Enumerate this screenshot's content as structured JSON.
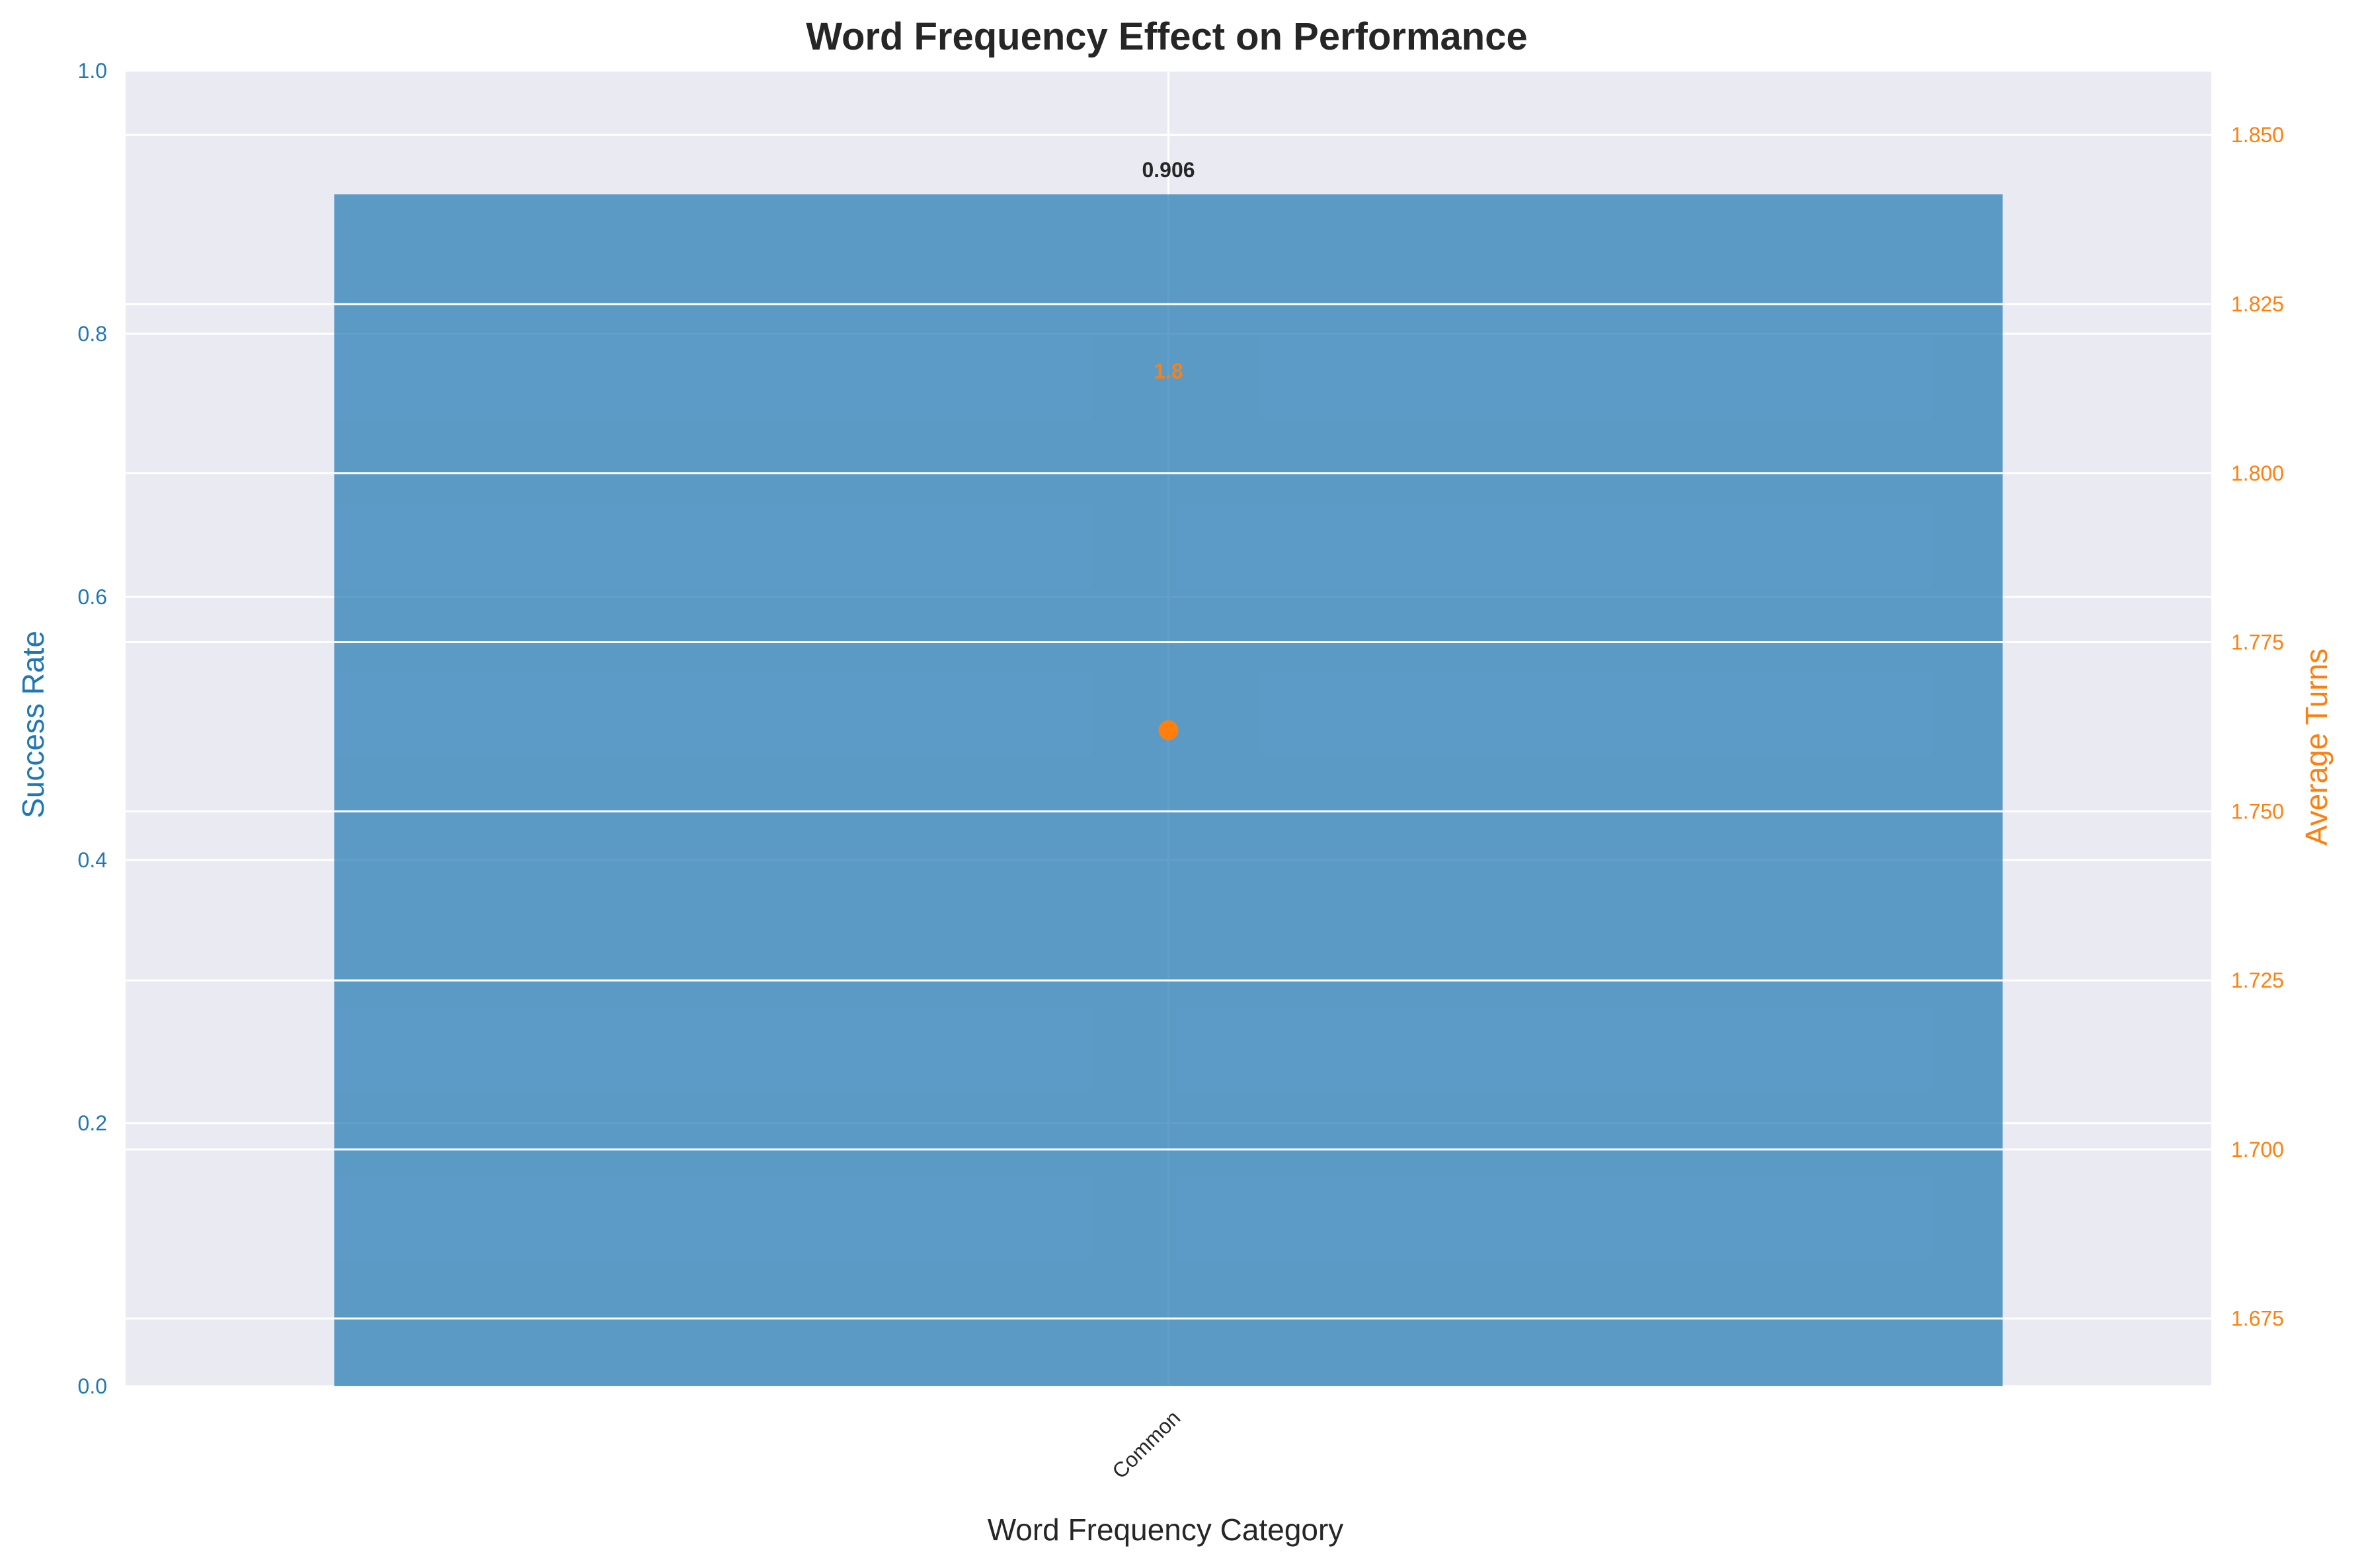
{
  "chart_data": {
    "type": "bar",
    "title": "Word Frequency Effect on Performance",
    "xlabel": "Word Frequency Category",
    "categories": [
      "Common"
    ],
    "series": [
      {
        "name": "Success Rate",
        "axis": "left",
        "type": "bar",
        "values": [
          0.906
        ],
        "labels": [
          "0.906"
        ]
      },
      {
        "name": "Average Turns",
        "axis": "right",
        "type": "scatter",
        "values": [
          1.762
        ],
        "labels": [
          "1.8"
        ]
      }
    ],
    "y_left": {
      "label": "Success Rate",
      "lim": [
        0,
        1.0
      ],
      "ticks": [
        "0.0",
        "0.2",
        "0.4",
        "0.6",
        "0.8",
        "1.0"
      ]
    },
    "y_right": {
      "label": "Average Turns",
      "lim": [
        1.665,
        1.8595
      ],
      "ticks": [
        "1.675",
        "1.700",
        "1.725",
        "1.750",
        "1.775",
        "1.800",
        "1.825",
        "1.850"
      ]
    },
    "grid": true,
    "colors": {
      "bar": "#1f77b4",
      "line": "#ff7f0e",
      "left_axis": "#1f77b4",
      "right_axis": "#ff7f0e",
      "plot_bg": "#eaeaf2",
      "grid": "#ffffff",
      "text": "#262626"
    }
  }
}
